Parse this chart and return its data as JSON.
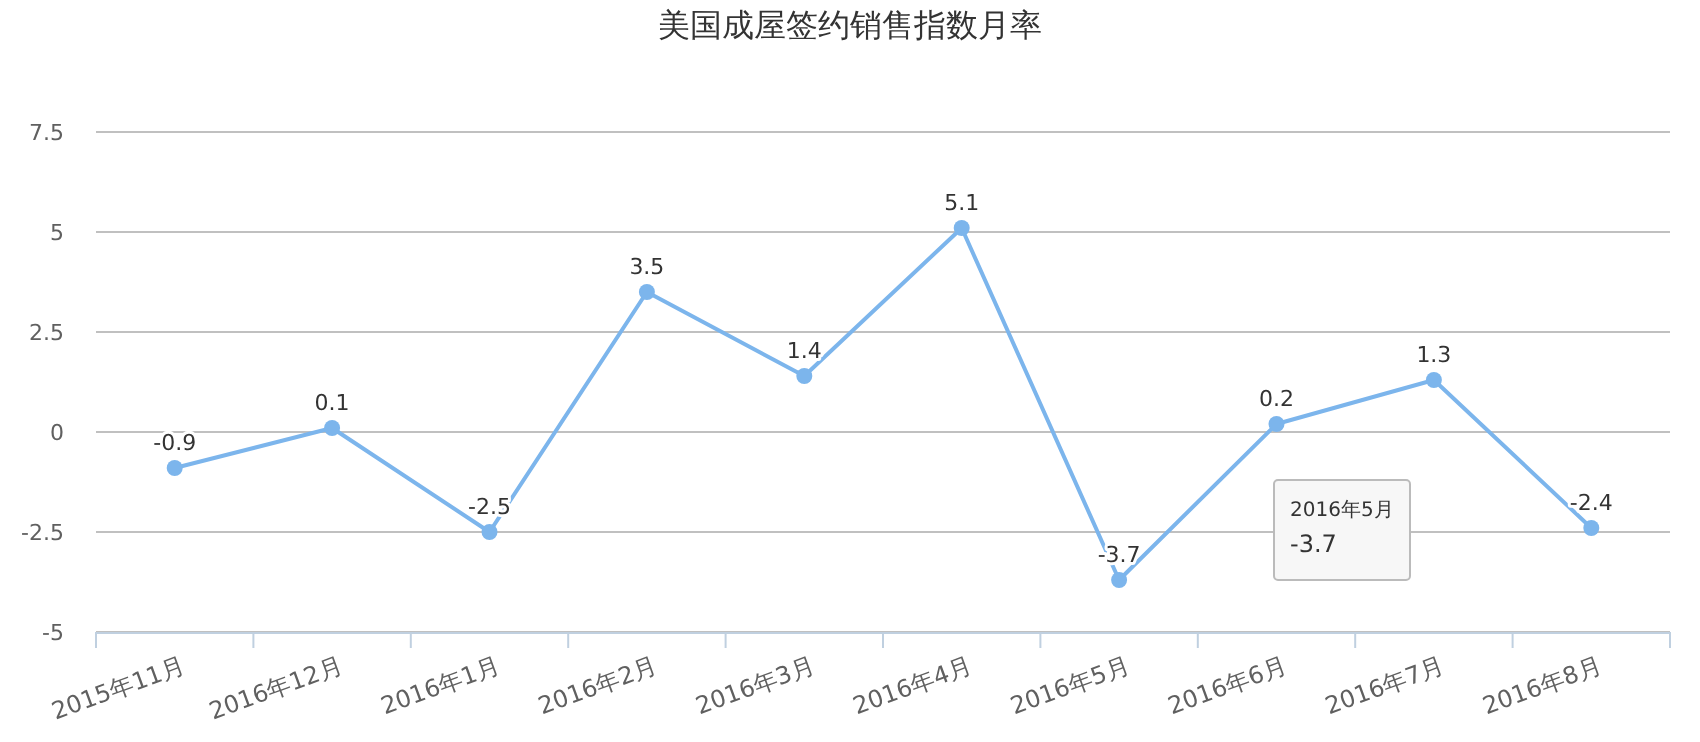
{
  "chart_data": {
    "type": "line",
    "title": "美国成屋签约销售指数月率",
    "categories": [
      "2015年11月",
      "2016年12月",
      "2016年1月",
      "2016年2月",
      "2016年3月",
      "2016年4月",
      "2016年5月",
      "2016年6月",
      "2016年7月",
      "2016年8月"
    ],
    "series": [
      {
        "color": "#7cb5ec",
        "values": [
          -0.9,
          0.1,
          -2.5,
          3.5,
          1.4,
          5.1,
          -3.7,
          0.2,
          1.3,
          -2.4
        ]
      }
    ],
    "ylim": [
      -5,
      7.5
    ],
    "yticks": [
      -5,
      -2.5,
      0,
      2.5,
      5,
      7.5
    ],
    "grid": "y",
    "marker": "circle",
    "line_style": "solid",
    "data_labels": true,
    "annotations": [
      "2016年5月",
      "-3.7"
    ]
  }
}
